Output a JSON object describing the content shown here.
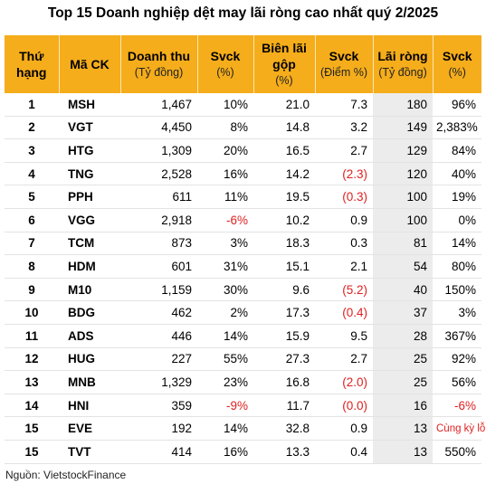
{
  "title": "Top 15 Doanh nghiệp dệt may lãi ròng cao nhất quý 2/2025",
  "headers": {
    "rank": [
      "Thứ",
      "hạng"
    ],
    "ticker": "Mã CK",
    "revenue": [
      "Doanh thu",
      "(Tỷ đồng)"
    ],
    "revenue_yoy": [
      "Svck",
      "(%)"
    ],
    "gross_margin": [
      "Biên lãi",
      "gộp",
      "(%)"
    ],
    "margin_yoy": [
      "Svck",
      "(Điểm %)"
    ],
    "net_profit": [
      "Lãi ròng",
      "(Tỷ đồng)"
    ],
    "profit_yoy": [
      "Svck",
      "(%)"
    ]
  },
  "rows": [
    {
      "rank": "1",
      "ticker": "MSH",
      "revenue": "1,467",
      "revenue_yoy": "10%",
      "gross_margin": "21.0",
      "margin_yoy": "7.3",
      "net_profit": "180",
      "profit_yoy": "96%"
    },
    {
      "rank": "2",
      "ticker": "VGT",
      "revenue": "4,450",
      "revenue_yoy": "8%",
      "gross_margin": "14.8",
      "margin_yoy": "3.2",
      "net_profit": "149",
      "profit_yoy": "2,383%"
    },
    {
      "rank": "3",
      "ticker": "HTG",
      "revenue": "1,309",
      "revenue_yoy": "20%",
      "gross_margin": "16.5",
      "margin_yoy": "2.7",
      "net_profit": "129",
      "profit_yoy": "84%"
    },
    {
      "rank": "4",
      "ticker": "TNG",
      "revenue": "2,528",
      "revenue_yoy": "16%",
      "gross_margin": "14.2",
      "margin_yoy": "(2.3)",
      "net_profit": "120",
      "profit_yoy": "40%"
    },
    {
      "rank": "5",
      "ticker": "PPH",
      "revenue": "611",
      "revenue_yoy": "11%",
      "gross_margin": "19.5",
      "margin_yoy": "(0.3)",
      "net_profit": "100",
      "profit_yoy": "19%"
    },
    {
      "rank": "6",
      "ticker": "VGG",
      "revenue": "2,918",
      "revenue_yoy": "-6%",
      "gross_margin": "10.2",
      "margin_yoy": "0.9",
      "net_profit": "100",
      "profit_yoy": "0%"
    },
    {
      "rank": "7",
      "ticker": "TCM",
      "revenue": "873",
      "revenue_yoy": "3%",
      "gross_margin": "18.3",
      "margin_yoy": "0.3",
      "net_profit": "81",
      "profit_yoy": "14%"
    },
    {
      "rank": "8",
      "ticker": "HDM",
      "revenue": "601",
      "revenue_yoy": "31%",
      "gross_margin": "15.1",
      "margin_yoy": "2.1",
      "net_profit": "54",
      "profit_yoy": "80%"
    },
    {
      "rank": "9",
      "ticker": "M10",
      "revenue": "1,159",
      "revenue_yoy": "30%",
      "gross_margin": "9.6",
      "margin_yoy": "(5.2)",
      "net_profit": "40",
      "profit_yoy": "150%"
    },
    {
      "rank": "10",
      "ticker": "BDG",
      "revenue": "462",
      "revenue_yoy": "2%",
      "gross_margin": "17.3",
      "margin_yoy": "(0.4)",
      "net_profit": "37",
      "profit_yoy": "3%"
    },
    {
      "rank": "11",
      "ticker": "ADS",
      "revenue": "446",
      "revenue_yoy": "14%",
      "gross_margin": "15.9",
      "margin_yoy": "9.5",
      "net_profit": "28",
      "profit_yoy": "367%"
    },
    {
      "rank": "12",
      "ticker": "HUG",
      "revenue": "227",
      "revenue_yoy": "55%",
      "gross_margin": "27.3",
      "margin_yoy": "2.7",
      "net_profit": "25",
      "profit_yoy": "92%"
    },
    {
      "rank": "13",
      "ticker": "MNB",
      "revenue": "1,329",
      "revenue_yoy": "23%",
      "gross_margin": "16.8",
      "margin_yoy": "(2.0)",
      "net_profit": "25",
      "profit_yoy": "56%"
    },
    {
      "rank": "14",
      "ticker": "HNI",
      "revenue": "359",
      "revenue_yoy": "-9%",
      "gross_margin": "11.7",
      "margin_yoy": "(0.0)",
      "net_profit": "16",
      "profit_yoy": "-6%"
    },
    {
      "rank": "15",
      "ticker": "EVE",
      "revenue": "192",
      "revenue_yoy": "14%",
      "gross_margin": "32.8",
      "margin_yoy": "0.9",
      "net_profit": "13",
      "profit_yoy": "Cùng kỳ lỗ"
    },
    {
      "rank": "15",
      "ticker": "TVT",
      "revenue": "414",
      "revenue_yoy": "16%",
      "gross_margin": "13.3",
      "margin_yoy": "0.4",
      "net_profit": "13",
      "profit_yoy": "550%"
    }
  ],
  "source": "Nguồn: VietstockFinance",
  "colors": {
    "header_bg": "#f5ad1b",
    "negative": "#e02020",
    "highlight_col": "#ececec"
  }
}
